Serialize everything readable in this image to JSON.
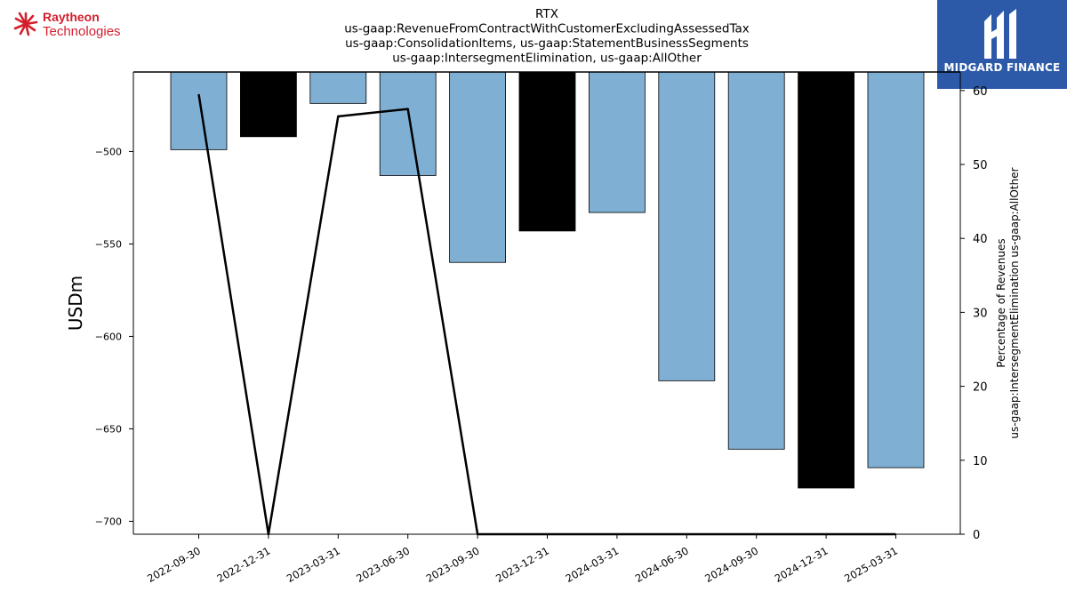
{
  "logos": {
    "left_name": "Raytheon",
    "left_sub": "Technologies",
    "right_name": "MIDGARD FINANCE"
  },
  "colors": {
    "bar_default": "#7fb0d4",
    "bar_highlight": "#000000",
    "line": "#000000",
    "brand_red": "#d31f2d",
    "brand_blue": "#2d5aa8"
  },
  "chart_data": {
    "type": "bar",
    "title": "RTX",
    "subtitle_lines": [
      "us-gaap:RevenueFromContractWithCustomerExcludingAssessedTax",
      "us-gaap:ConsolidationItems, us-gaap:StatementBusinessSegments",
      "us-gaap:IntersegmentElimination, us-gaap:AllOther"
    ],
    "ylabel": "USDm",
    "y2label_lines": [
      "Percentage of Revenues",
      "us-gaap:IntersegmentElimination us-gaap:AllOther"
    ],
    "categories": [
      "2022-09-30",
      "2022-12-31",
      "2023-03-31",
      "2023-06-30",
      "2023-09-30",
      "2023-12-31",
      "2024-03-31",
      "2024-06-30",
      "2024-09-30",
      "2024-12-31",
      "2025-03-31"
    ],
    "series": [
      {
        "type": "bar",
        "values": [
          -499,
          -492,
          -474,
          -513,
          -560,
          -543,
          -533,
          -624,
          -661,
          -682,
          -671
        ],
        "highlight": [
          false,
          true,
          false,
          false,
          false,
          true,
          false,
          false,
          false,
          true,
          false
        ]
      },
      {
        "type": "line",
        "axis": "right",
        "values": [
          59.5,
          0,
          56.5,
          57.5,
          0,
          0,
          0,
          0,
          0,
          0,
          0
        ]
      }
    ],
    "ylim": [
      -707,
      -457
    ],
    "yticks": [
      -500,
      -550,
      -600,
      -650,
      -700
    ],
    "y2lim": [
      0,
      62.5
    ],
    "y2ticks": [
      0,
      10,
      20,
      30,
      40,
      50,
      60
    ],
    "grid": false
  }
}
